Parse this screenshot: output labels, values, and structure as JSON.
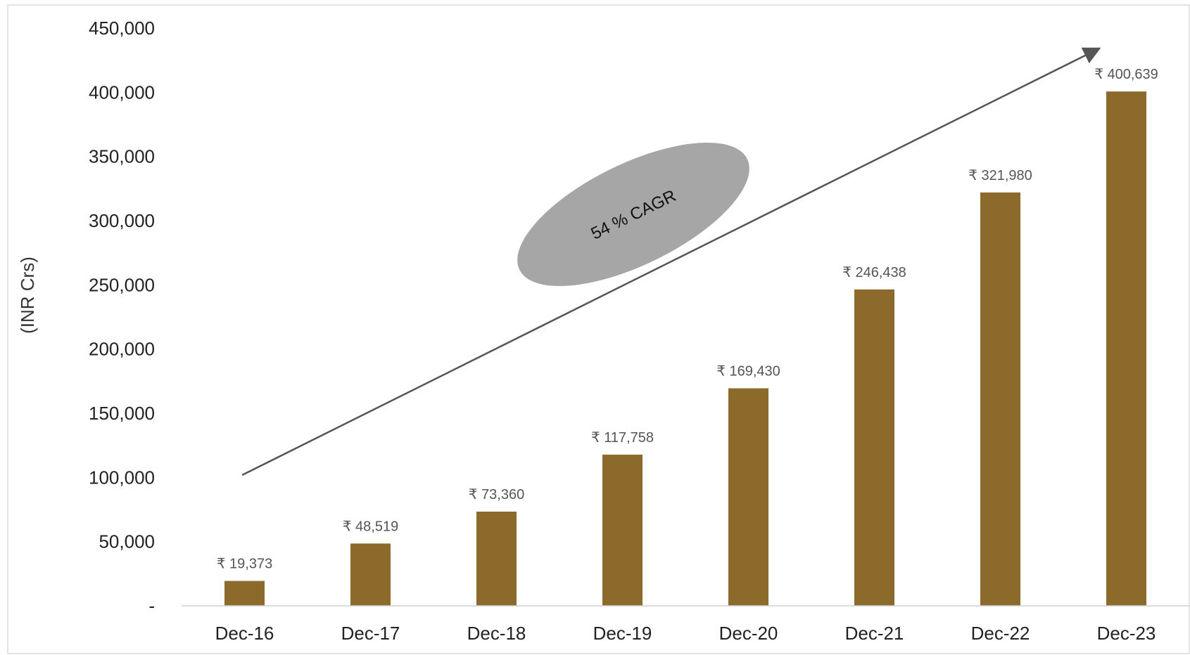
{
  "chart_data": {
    "type": "bar",
    "title": "",
    "xlabel": "",
    "ylabel": "(INR Crs)",
    "categories": [
      "Dec-16",
      "Dec-17",
      "Dec-18",
      "Dec-19",
      "Dec-20",
      "Dec-21",
      "Dec-22",
      "Dec-23"
    ],
    "values": [
      19373,
      48519,
      73360,
      117758,
      169430,
      246438,
      321980,
      400639
    ],
    "data_labels": [
      "₹ 19,373",
      "₹ 48,519",
      "₹ 73,360",
      "₹ 117,758",
      "₹ 169,430",
      "₹ 246,438",
      "₹ 321,980",
      "₹ 400,639"
    ],
    "ylim": [
      0,
      450000
    ],
    "y_ticks": [
      0,
      50000,
      100000,
      150000,
      200000,
      250000,
      300000,
      350000,
      400000,
      450000
    ],
    "y_tick_labels": [
      "-",
      "50,000",
      "100,000",
      "150,000",
      "200,000",
      "250,000",
      "300,000",
      "350,000",
      "400,000",
      "450,000"
    ],
    "grid": false,
    "legend": "none",
    "bar_color": "#8B6A2B",
    "annotation": {
      "text": "54 % CAGR",
      "arrow_color": "#555555",
      "ellipse_color": "#A6A6A6"
    }
  }
}
